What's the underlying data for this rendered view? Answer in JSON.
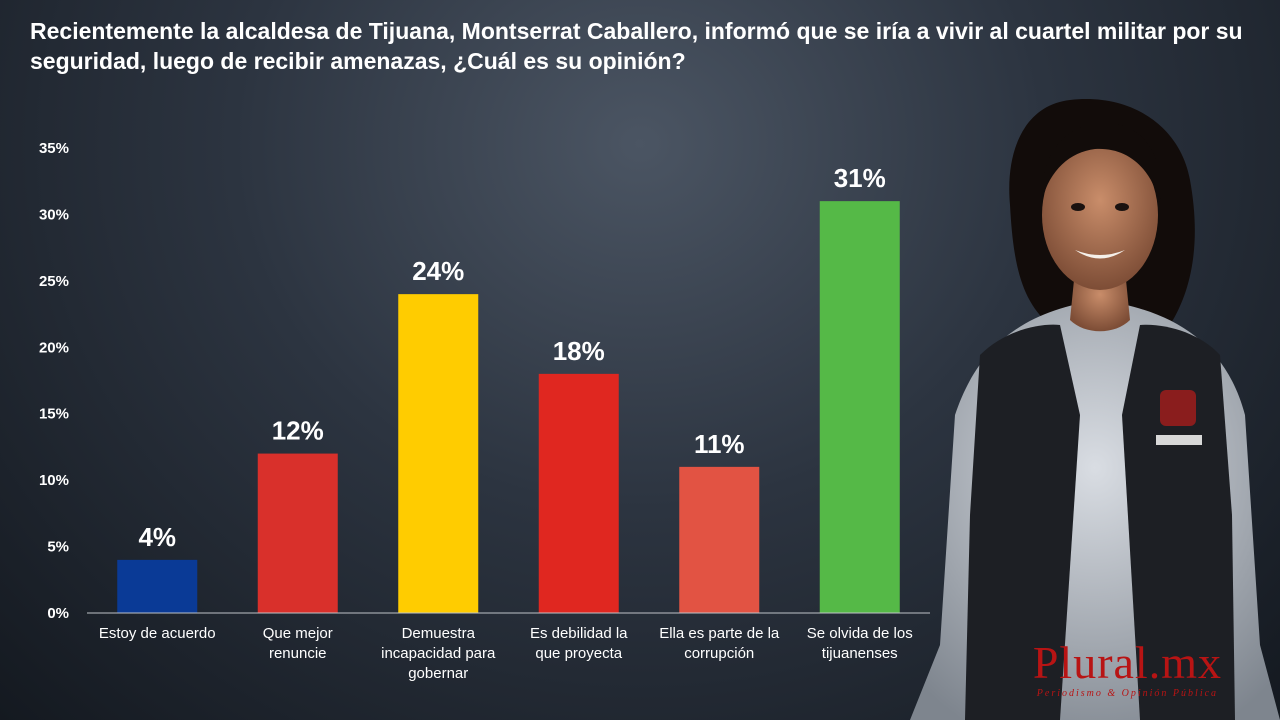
{
  "question": "Recientemente la alcaldesa de Tijuana, Montserrat Caballero, informó que se iría a vivir al cuartel militar por su seguridad, luego de recibir amenazas, ¿Cuál es su opinión?",
  "brand": {
    "name": "Plural.mx",
    "tagline": "Periodismo & Opinión Pública",
    "color": "#b81414"
  },
  "chart_data": {
    "type": "bar",
    "title": "Recientemente la alcaldesa de Tijuana, Montserrat Caballero, informó que se iría a vivir al cuartel militar por su seguridad, luego de recibir amenazas, ¿Cuál es su opinión?",
    "categories": [
      "Estoy de acuerdo",
      "Que mejor renuncie",
      "Demuestra incapacidad para gobernar",
      "Es debilidad la que proyecta",
      "Ella es parte de la corrupción",
      "Se olvida de los tijuanenses"
    ],
    "category_lines": [
      [
        "Estoy de acuerdo"
      ],
      [
        "Que mejor",
        "renuncie"
      ],
      [
        "Demuestra",
        "incapacidad para",
        "gobernar"
      ],
      [
        "Es debilidad la",
        "que proyecta"
      ],
      [
        "Ella es parte de la",
        "corrupción"
      ],
      [
        "Se olvida de los",
        "tijuanenses"
      ]
    ],
    "values": [
      4,
      12,
      24,
      18,
      11,
      31
    ],
    "data_labels": [
      "4%",
      "12%",
      "24%",
      "18%",
      "11%",
      "31%"
    ],
    "colors": [
      "#0a3a96",
      "#d9302b",
      "#ffcc00",
      "#e02720",
      "#e25343",
      "#55b947"
    ],
    "ylim": [
      0,
      35
    ],
    "yticks": [
      0,
      5,
      10,
      15,
      20,
      25,
      30,
      35
    ],
    "ytick_labels": [
      "0%",
      "5%",
      "10%",
      "15%",
      "20%",
      "25%",
      "30%",
      "35%"
    ],
    "xlabel": "",
    "ylabel": "",
    "grid": false,
    "legend": "none"
  }
}
